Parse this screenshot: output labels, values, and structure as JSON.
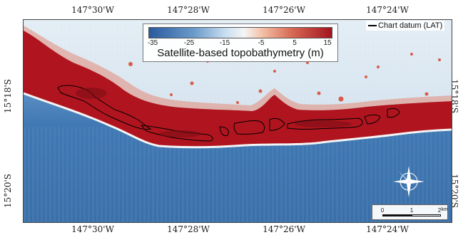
{
  "axes": {
    "top_labels": [
      "147°30'W",
      "147°28'W",
      "147°26'W",
      "147°24'W"
    ],
    "bottom_labels": [
      "147°30'W",
      "147°28'W",
      "147°26'W",
      "147°24'W"
    ],
    "left_labels": [
      "15°18'S",
      "15°20'S"
    ],
    "right_labels": [
      "15°18'S",
      "15°20'S"
    ]
  },
  "colorbar": {
    "title": "Satellite-based topobathymetry (m)",
    "ticks": [
      "-35",
      "-25",
      "-15",
      "-5",
      "5",
      "15"
    ],
    "colors": [
      "#2a5a9e",
      "#6c9ccb",
      "#c9dff0",
      "#f5f5f5",
      "#f3c0a6",
      "#d76a55",
      "#a3141e"
    ]
  },
  "legend": {
    "label": "Chart datum (LAT)"
  },
  "scale_bar": {
    "labels": [
      "0",
      "1",
      "2"
    ],
    "unit": "km"
  },
  "map": {
    "deep_water_color": "#3e78b4",
    "lagoon_color": "#d7e4ef",
    "reef_color": "#b0151f",
    "island_icon": "compass-rose-icon"
  }
}
